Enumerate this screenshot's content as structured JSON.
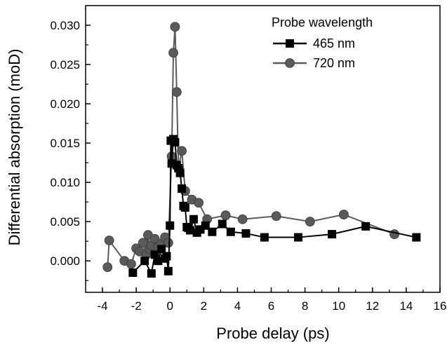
{
  "chart_data": {
    "type": "line",
    "title": "",
    "xlabel": "Probe delay (ps)",
    "ylabel": "Differential absorption (moD)",
    "xlim": [
      -5,
      16
    ],
    "ylim": [
      -0.004,
      0.0325
    ],
    "x_ticks": [
      -4,
      -2,
      0,
      2,
      4,
      6,
      8,
      10,
      12,
      14,
      16
    ],
    "x_tick_labels": [
      "-4",
      "-2",
      "0",
      "2",
      "4",
      "6",
      "8",
      "10",
      "12",
      "14",
      "16"
    ],
    "y_ticks": [
      0.0,
      0.005,
      0.01,
      0.015,
      0.02,
      0.025,
      0.03
    ],
    "y_tick_labels": [
      "0.000",
      "0.005",
      "0.010",
      "0.015",
      "0.020",
      "0.025",
      "0.030"
    ],
    "grid": false,
    "legend": {
      "title": "Probe wavelength",
      "placement": "top-right"
    },
    "series": [
      {
        "name": "465 nm",
        "color": "#000000",
        "marker": "square",
        "x": [
          -2.2,
          -1.5,
          -1.1,
          -0.9,
          -0.7,
          -0.5,
          -0.3,
          -0.2,
          -0.1,
          0.0,
          0.05,
          0.1,
          0.2,
          0.3,
          0.4,
          0.5,
          0.6,
          0.7,
          0.8,
          0.9,
          1.0,
          1.1,
          1.2,
          1.4,
          1.6,
          1.8,
          2.1,
          2.5,
          3.1,
          3.6,
          4.5,
          5.6,
          7.6,
          9.6,
          11.6,
          14.6
        ],
        "y": [
          -0.0015,
          0.0,
          -0.0016,
          0.0008,
          0.0,
          0.0015,
          0.0003,
          0.0006,
          -0.0013,
          0.0045,
          0.0153,
          0.0124,
          0.0155,
          0.0151,
          0.0122,
          0.0118,
          0.0112,
          0.0092,
          0.007,
          0.0068,
          0.0043,
          0.0042,
          0.0039,
          0.0053,
          0.0036,
          0.004,
          0.0045,
          0.0037,
          0.0047,
          0.0037,
          0.0035,
          0.003,
          0.003,
          0.0034,
          0.0044,
          0.003
        ]
      },
      {
        "name": "720 nm",
        "color": "#5a5a5a",
        "marker": "circle",
        "x": [
          -3.7,
          -3.6,
          -2.7,
          -2.3,
          -2.0,
          -1.8,
          -1.6,
          -1.4,
          -1.3,
          -1.2,
          -1.1,
          -0.9,
          -0.7,
          -0.5,
          -0.3,
          -0.1,
          0.1,
          0.2,
          0.3,
          0.4,
          0.5,
          0.7,
          0.9,
          1.3,
          1.7,
          2.2,
          3.3,
          4.3,
          6.3,
          8.3,
          10.3,
          13.3
        ],
        "y": [
          -0.0008,
          0.0026,
          0.0,
          -0.0004,
          0.0016,
          0.0012,
          0.0023,
          0.0008,
          0.0033,
          0.0015,
          0.002,
          0.0028,
          0.0018,
          0.0022,
          0.003,
          0.0023,
          0.0133,
          0.0265,
          0.0298,
          0.0215,
          0.0118,
          0.014,
          0.0089,
          0.0078,
          0.0074,
          0.0053,
          0.0058,
          0.0053,
          0.0057,
          0.005,
          0.0059,
          0.0034
        ]
      }
    ]
  }
}
